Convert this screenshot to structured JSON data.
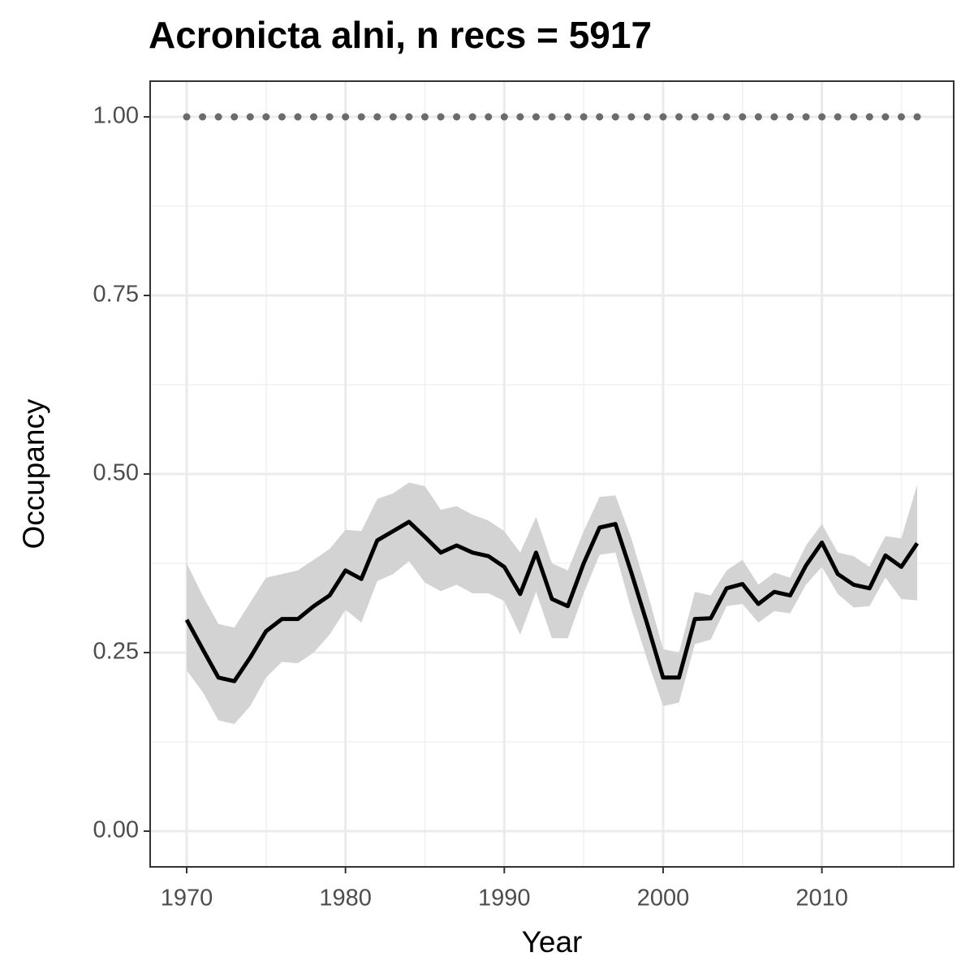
{
  "chart_data": {
    "type": "line",
    "title": "Acronicta alni, n recs = 5917",
    "x_label": "Year",
    "y_label": "Occupancy",
    "x": [
      1970,
      1971,
      1972,
      1973,
      1974,
      1975,
      1976,
      1977,
      1978,
      1979,
      1980,
      1981,
      1982,
      1983,
      1984,
      1985,
      1986,
      1987,
      1988,
      1989,
      1990,
      1991,
      1992,
      1993,
      1994,
      1995,
      1996,
      1997,
      1998,
      1999,
      2000,
      2001,
      2002,
      2003,
      2004,
      2005,
      2006,
      2007,
      2008,
      2009,
      2010,
      2011,
      2012,
      2013,
      2014,
      2015,
      2016
    ],
    "series": [
      {
        "type": "line",
        "color": "#000000",
        "band_color": "#d3d3d3",
        "values": [
          0.296,
          0.255,
          0.215,
          0.21,
          0.243,
          0.28,
          0.297,
          0.297,
          0.315,
          0.33,
          0.365,
          0.353,
          0.407,
          0.42,
          0.433,
          0.412,
          0.39,
          0.4,
          0.39,
          0.385,
          0.37,
          0.332,
          0.39,
          0.325,
          0.315,
          0.375,
          0.425,
          0.43,
          0.362,
          0.29,
          0.215,
          0.215,
          0.297,
          0.298,
          0.34,
          0.346,
          0.318,
          0.335,
          0.33,
          0.372,
          0.404,
          0.36,
          0.345,
          0.34,
          0.386,
          0.37,
          0.403
        ],
        "lower": [
          0.225,
          0.195,
          0.155,
          0.15,
          0.175,
          0.215,
          0.237,
          0.235,
          0.25,
          0.275,
          0.31,
          0.292,
          0.35,
          0.36,
          0.378,
          0.348,
          0.336,
          0.345,
          0.333,
          0.333,
          0.322,
          0.275,
          0.335,
          0.27,
          0.27,
          0.333,
          0.387,
          0.39,
          0.31,
          0.24,
          0.175,
          0.18,
          0.262,
          0.268,
          0.315,
          0.318,
          0.292,
          0.308,
          0.305,
          0.345,
          0.37,
          0.332,
          0.313,
          0.315,
          0.355,
          0.325,
          0.323
        ],
        "upper": [
          0.375,
          0.33,
          0.29,
          0.285,
          0.32,
          0.355,
          0.36,
          0.365,
          0.38,
          0.395,
          0.422,
          0.42,
          0.465,
          0.473,
          0.488,
          0.483,
          0.45,
          0.455,
          0.443,
          0.435,
          0.42,
          0.39,
          0.44,
          0.375,
          0.365,
          0.42,
          0.468,
          0.47,
          0.41,
          0.335,
          0.255,
          0.25,
          0.335,
          0.33,
          0.365,
          0.38,
          0.345,
          0.362,
          0.355,
          0.4,
          0.43,
          0.39,
          0.385,
          0.37,
          0.413,
          0.41,
          0.485
        ]
      },
      {
        "type": "points",
        "color": "#6b6b6b",
        "values": [
          1,
          1,
          1,
          1,
          1,
          1,
          1,
          1,
          1,
          1,
          1,
          1,
          1,
          1,
          1,
          1,
          1,
          1,
          1,
          1,
          1,
          1,
          1,
          1,
          1,
          1,
          1,
          1,
          1,
          1,
          1,
          1,
          1,
          1,
          1,
          1,
          1,
          1,
          1,
          1,
          1,
          1,
          1,
          1,
          1,
          1,
          1
        ]
      }
    ],
    "xlim": [
      1967.7,
      2018.3
    ],
    "xticks": [
      1970,
      1980,
      1990,
      2000,
      2010
    ],
    "ylim": [
      -0.05,
      1.05
    ],
    "yticks": [
      {
        "value": 0,
        "label": "0.00"
      },
      {
        "value": 0.25,
        "label": "0.25"
      },
      {
        "value": 0.5,
        "label": "0.50"
      },
      {
        "value": 0.75,
        "label": "0.75"
      },
      {
        "value": 1,
        "label": "1.00"
      }
    ],
    "grid": true
  }
}
